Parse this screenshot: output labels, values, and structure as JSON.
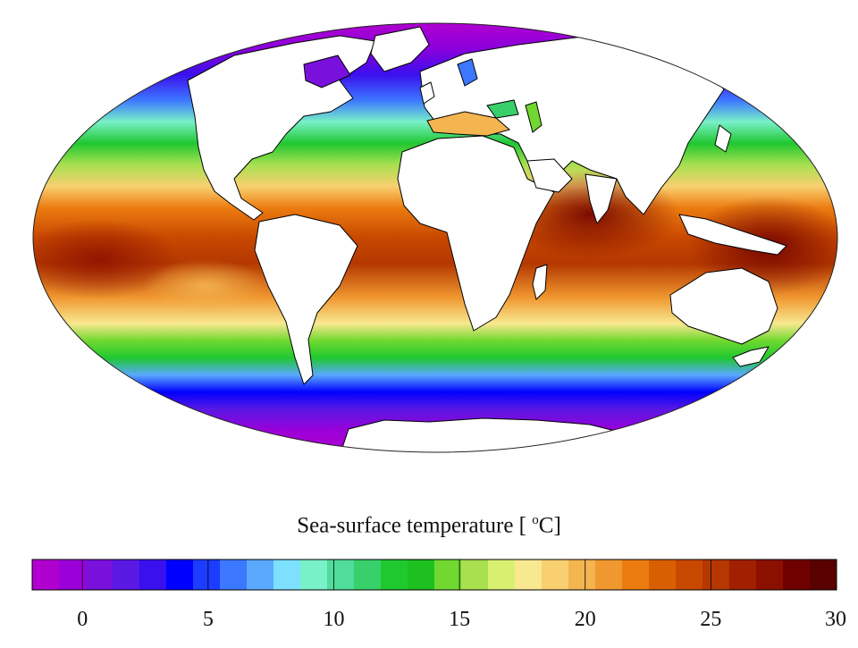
{
  "legend": {
    "title_prefix": "Sea-surface temperature [ ",
    "title_unit_sup": "o",
    "title_unit_suffix": "C]",
    "range": [
      -2,
      30
    ],
    "tick_labels": [
      "0",
      "5",
      "10",
      "15",
      "20",
      "25",
      "30"
    ],
    "tick_values": [
      0,
      5,
      10,
      15,
      20,
      25,
      30
    ],
    "bins": [
      "#b000d0",
      "#9b00d8",
      "#7a10dc",
      "#5a18e4",
      "#3a10ee",
      "#0000ff",
      "#1c3cff",
      "#3c78ff",
      "#5aa8ff",
      "#7ee0ff",
      "#78f0c8",
      "#50dc9a",
      "#38d06a",
      "#20c830",
      "#1ec020",
      "#70d830",
      "#a8e050",
      "#d8f070",
      "#f8e890",
      "#f8d070",
      "#f4b450",
      "#f09830",
      "#ec7c10",
      "#d86000",
      "#c84800",
      "#b43800",
      "#a02000",
      "#8c1000",
      "#700000",
      "#5a0000"
    ]
  },
  "map": {
    "projection": "Mollweide",
    "ocean_palette": "sea-surface temperature",
    "land_color": "#ffffff",
    "coast_color": "#000000"
  }
}
